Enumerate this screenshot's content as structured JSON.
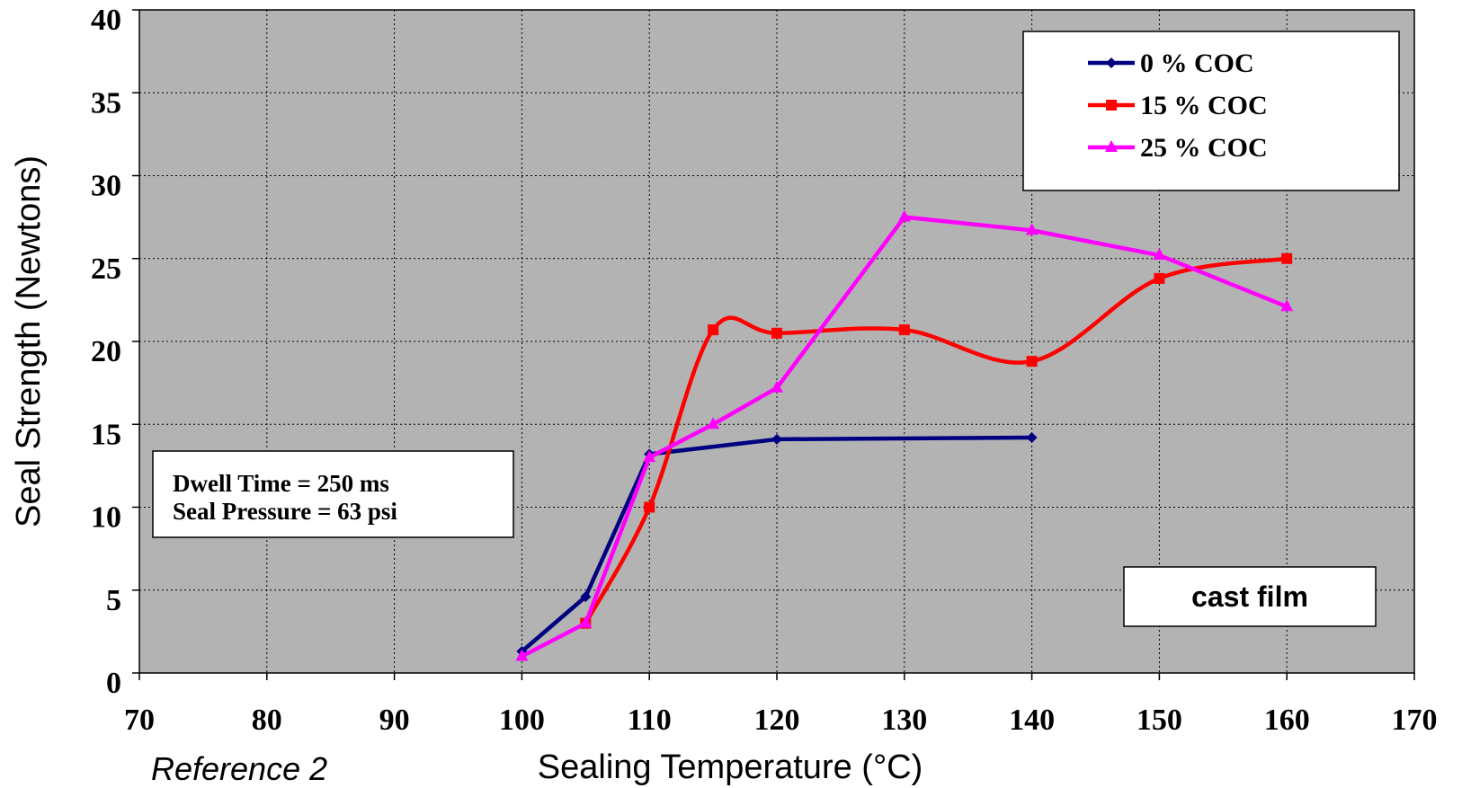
{
  "chart_data": {
    "type": "line",
    "xlabel": "Sealing Temperature (°C)",
    "ylabel": "Seal Strength (Newtons)",
    "xlim": [
      70,
      170
    ],
    "ylim": [
      0,
      40
    ],
    "x_ticks": [
      "70",
      "80",
      "90",
      "100",
      "110",
      "120",
      "130",
      "140",
      "150",
      "160",
      "170"
    ],
    "y_ticks": [
      "0",
      "5",
      "10",
      "15",
      "20",
      "25",
      "30",
      "35",
      "40"
    ],
    "grid": true,
    "legend_position": "top-right",
    "plot_background": "#b3b3b3",
    "series": [
      {
        "name": "0 % COC",
        "color": "#000080",
        "marker": "diamond",
        "smooth": false,
        "x": [
          100,
          105,
          110,
          120,
          140
        ],
        "y": [
          1.3,
          4.6,
          13.2,
          14.1,
          14.2
        ]
      },
      {
        "name": "15 % COC",
        "color": "#ff0000",
        "marker": "square",
        "smooth": true,
        "x": [
          105,
          110,
          115,
          120,
          130,
          140,
          150,
          160
        ],
        "y": [
          3.0,
          10.0,
          20.7,
          20.5,
          20.7,
          18.8,
          23.8,
          25.0
        ]
      },
      {
        "name": "25 % COC",
        "color": "#ff00ff",
        "marker": "triangle",
        "smooth": false,
        "x": [
          100,
          105,
          110,
          115,
          120,
          130,
          140,
          150,
          160
        ],
        "y": [
          1.0,
          3.0,
          13.0,
          15.0,
          17.2,
          27.5,
          26.7,
          25.2,
          22.1
        ]
      }
    ]
  },
  "notes": {
    "conditions_line1": "Dwell Time = 250 ms",
    "conditions_line2": "Seal Pressure = 63 psi",
    "film_label": "cast film",
    "reference": "Reference 2"
  }
}
